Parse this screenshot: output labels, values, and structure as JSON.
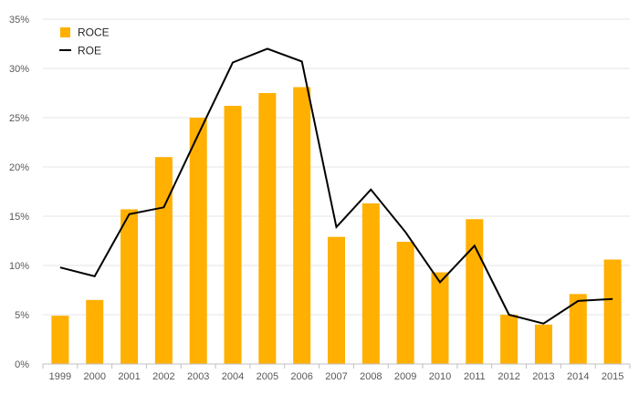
{
  "chart_data": {
    "type": "bar",
    "categories": [
      "1999",
      "2000",
      "2001",
      "2002",
      "2003",
      "2004",
      "2005",
      "2006",
      "2007",
      "2008",
      "2009",
      "2010",
      "2011",
      "2012",
      "2013",
      "2014",
      "2015"
    ],
    "series": [
      {
        "name": "ROCE",
        "type": "bar",
        "color": "#FFB000",
        "values": [
          4.9,
          6.5,
          15.7,
          21.0,
          25.0,
          26.2,
          27.5,
          28.1,
          12.9,
          16.3,
          12.4,
          9.3,
          14.7,
          5.0,
          4.0,
          7.1,
          10.6
        ]
      },
      {
        "name": "ROE",
        "type": "line",
        "color": "#000000",
        "values": [
          9.8,
          8.9,
          15.2,
          15.9,
          23.3,
          30.6,
          32.0,
          30.7,
          13.9,
          17.7,
          13.4,
          8.3,
          12.0,
          5.0,
          4.1,
          6.4,
          6.6
        ]
      }
    ],
    "ylim": [
      0,
      35
    ],
    "yticks": [
      "0%",
      "5%",
      "10%",
      "15%",
      "20%",
      "25%",
      "30%",
      "35%"
    ],
    "ytick_values": [
      0,
      5,
      10,
      15,
      20,
      25,
      30,
      35
    ],
    "grid": true,
    "legend_position": "top-left"
  }
}
